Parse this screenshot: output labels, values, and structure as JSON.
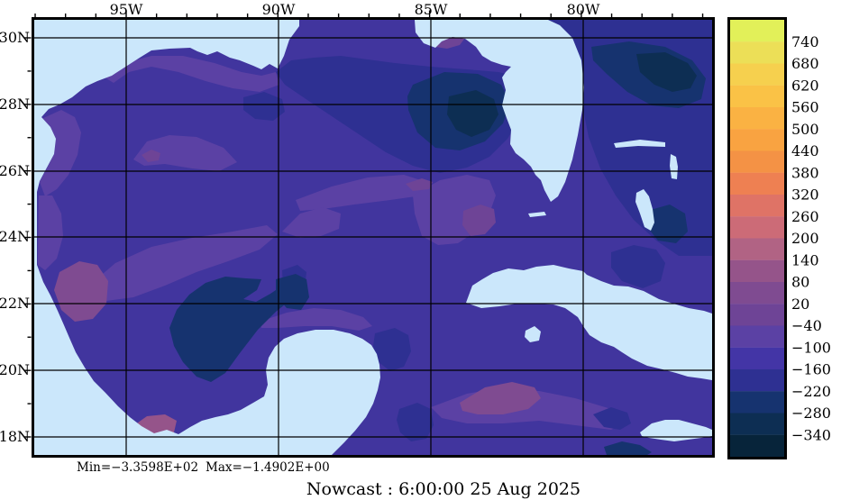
{
  "palette": {
    "background": "#ffffff",
    "land": "#cbe7fb",
    "ocean_base": "#41359e",
    "line": "#000000"
  },
  "axes": {
    "lon_labels": [
      "95W",
      "90W",
      "85W",
      "80W"
    ],
    "lat_labels": [
      "30N",
      "28N",
      "26N",
      "24N",
      "22N",
      "20N",
      "18N"
    ]
  },
  "colorbar": {
    "tick_labels": [
      "740",
      "680",
      "620",
      "560",
      "500",
      "440",
      "380",
      "320",
      "260",
      "200",
      "140",
      "80",
      "20",
      "−40",
      "−100",
      "−160",
      "−220",
      "−280",
      "−340"
    ],
    "band_colors": [
      "#e2f059",
      "#ecdf57",
      "#f6d04e",
      "#fac246",
      "#fab243",
      "#f9a341",
      "#f49245",
      "#ee8052",
      "#df7366",
      "#cc6b77",
      "#b16384",
      "#95548a",
      "#7f4b91",
      "#6e4496",
      "#5b41a4",
      "#4335a6",
      "#2e3092",
      "#16336f",
      "#0d2e53",
      "#07243a"
    ]
  },
  "footer": {
    "stats_min": "Min=−3.3598E+02",
    "stats_max": "Max=−1.4902E+00",
    "title": "Nowcast :  6:00:00  25 Aug 2025"
  },
  "chart_data": {
    "type": "heatmap",
    "title": "Nowcast :  6:00:00  25 Aug 2025",
    "region": "Gulf of Mexico, Florida, Cuba and northwest Caribbean (filled-contour nowcast field with land mask)",
    "x_axis": {
      "ticks": [
        "95W",
        "90W",
        "85W",
        "80W"
      ],
      "approx_range_lon": [
        "98W",
        "76W"
      ]
    },
    "y_axis": {
      "ticks": [
        "30N",
        "28N",
        "26N",
        "24N",
        "22N",
        "20N",
        "18N"
      ],
      "approx_range_lat": [
        "17.5N",
        "30.5N"
      ]
    },
    "colorbar_levels": [
      740,
      680,
      620,
      560,
      500,
      440,
      380,
      320,
      260,
      200,
      140,
      80,
      20,
      -40,
      -100,
      -160,
      -220,
      -280,
      -340
    ],
    "n_bands": 20,
    "band_step": 60,
    "stats": {
      "min": -335.98,
      "max": -1.4902
    },
    "legend_position": "right",
    "grid": true,
    "field_notes": "Entire sea area is negative: mostly the -220 to -40 purple bands. Darkest navy bands (-340 to -220) appear in the NE Gulf / DeSoto Canyon and west-Florida shelf edge, the Atlantic east of Florida, and the Bay of Campeche. Lighter mauve bands (-100 to 20) fringe the Mexican coast, central Gulf streaks and the Caribbean south of Cuba. Land is masked light blue."
  }
}
